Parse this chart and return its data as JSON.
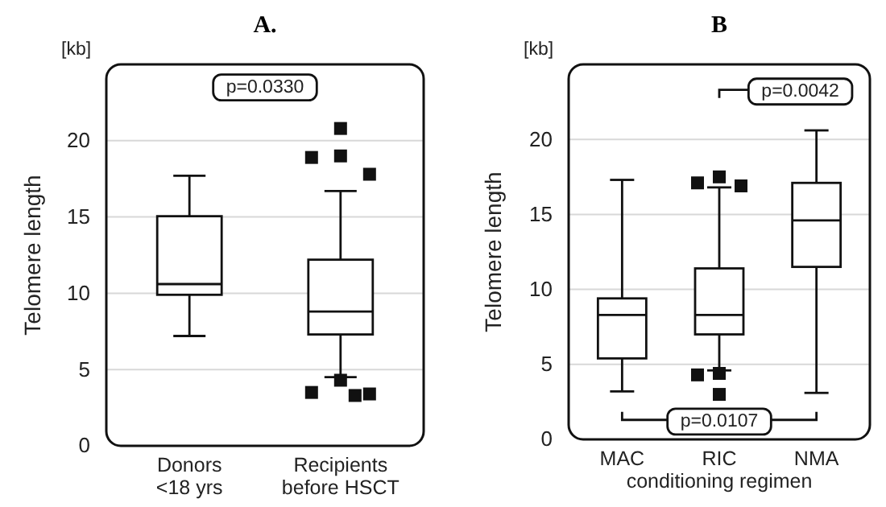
{
  "chart_data": [
    {
      "type": "box",
      "title": "A.",
      "ylabel": "Telomere length",
      "annotations": [
        "[kb]",
        "p=0.0330"
      ],
      "categories": [
        "Donors\n<18 yrs",
        "Recipients\nbefore HSCT"
      ],
      "ylim": [
        0,
        25
      ],
      "yticks": [
        0,
        5,
        10,
        15,
        20
      ],
      "grid": "y",
      "boxes": [
        {
          "low": 7.2,
          "q1": 9.9,
          "median": 10.6,
          "q3": 15.05,
          "high": 17.7
        },
        {
          "low": 4.5,
          "q1": 7.3,
          "median": 8.8,
          "q3": 12.2,
          "high": 16.7,
          "outliers": [
            20.8,
            19.0,
            18.9,
            17.8,
            4.3,
            3.5,
            3.4,
            3.3
          ]
        }
      ]
    },
    {
      "type": "box",
      "title": "B",
      "ylabel": "Telomere length",
      "xlabel": "conditioning regimen",
      "annotations": [
        "[kb]",
        "p=0.0042",
        "p=0.0107"
      ],
      "categories": [
        "MAC",
        "RIC",
        "NMA"
      ],
      "ylim": [
        0,
        25
      ],
      "yticks": [
        0,
        5,
        10,
        15,
        20
      ],
      "grid": "y",
      "boxes": [
        {
          "low": 3.2,
          "q1": 5.4,
          "median": 8.3,
          "q3": 9.4,
          "high": 17.3
        },
        {
          "low": 4.6,
          "q1": 7.0,
          "median": 8.3,
          "q3": 11.4,
          "high": 16.8,
          "outliers": [
            17.5,
            17.1,
            16.9,
            4.4,
            4.3,
            3.0
          ]
        },
        {
          "low": 3.1,
          "q1": 11.5,
          "median": 14.6,
          "q3": 17.1,
          "high": 20.6
        }
      ]
    }
  ]
}
